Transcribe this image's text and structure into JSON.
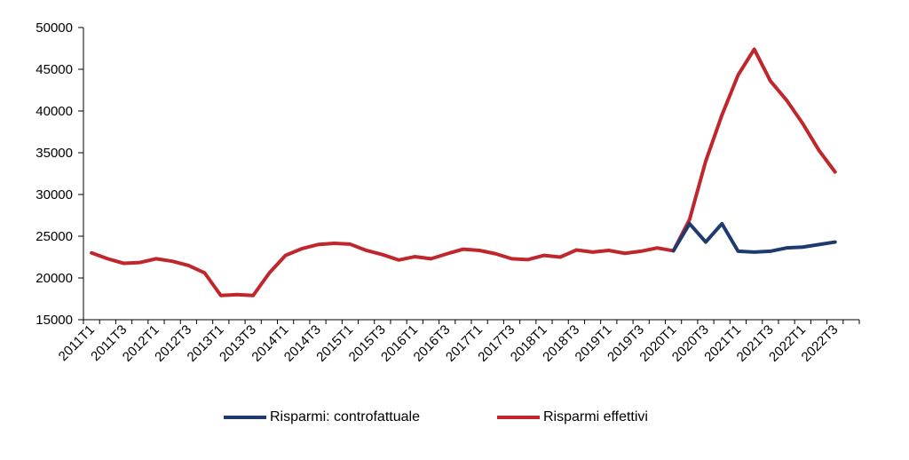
{
  "chart_data": {
    "type": "line",
    "title": "",
    "xlabel": "",
    "ylabel": "",
    "ylim": [
      15000,
      50000
    ],
    "y_ticks": [
      15000,
      20000,
      25000,
      30000,
      35000,
      40000,
      45000,
      50000
    ],
    "grid": false,
    "legend_position": "bottom",
    "x_tick_labels": [
      "2011T1",
      "2011T3",
      "2012T1",
      "2012T3",
      "2013T1",
      "2013T3",
      "2014T1",
      "2014T3",
      "2015T1",
      "2015T3",
      "2016T1",
      "2016T3",
      "2017T1",
      "2017T3",
      "2018T1",
      "2018T3",
      "2019T1",
      "2019T3",
      "2020T1",
      "2020T3",
      "2021T1",
      "2021T3",
      "2022T1",
      "2022T3"
    ],
    "categories": [
      "2011T1",
      "2011T2",
      "2011T3",
      "2011T4",
      "2012T1",
      "2012T2",
      "2012T3",
      "2012T4",
      "2013T1",
      "2013T2",
      "2013T3",
      "2013T4",
      "2014T1",
      "2014T2",
      "2014T3",
      "2014T4",
      "2015T1",
      "2015T2",
      "2015T3",
      "2015T4",
      "2016T1",
      "2016T2",
      "2016T3",
      "2016T4",
      "2017T1",
      "2017T2",
      "2017T3",
      "2017T4",
      "2018T1",
      "2018T2",
      "2018T3",
      "2018T4",
      "2019T1",
      "2019T2",
      "2019T3",
      "2019T4",
      "2020T1",
      "2020T2",
      "2020T3",
      "2020T4",
      "2021T1",
      "2021T2",
      "2021T3",
      "2021T4",
      "2022T1",
      "2022T2",
      "2022T3",
      "2022T4"
    ],
    "series": [
      {
        "name": "Risparmi effettivi",
        "color": "#c0272d",
        "values": [
          23000,
          22300,
          21750,
          21850,
          22300,
          22000,
          21500,
          20600,
          17900,
          18000,
          17900,
          20600,
          22700,
          23500,
          24000,
          24150,
          24050,
          23300,
          22800,
          22150,
          22550,
          22300,
          22900,
          23450,
          23300,
          22900,
          22300,
          22200,
          22700,
          22500,
          23350,
          23100,
          23300,
          22950,
          23200,
          23600,
          23250,
          27000,
          34000,
          39500,
          44300,
          47400,
          43600,
          41300,
          38500,
          35300,
          32700,
          null
        ]
      },
      {
        "name": "Risparmi: controfattuale",
        "color": "#1f3b6e",
        "values": [
          null,
          null,
          null,
          null,
          null,
          null,
          null,
          null,
          null,
          null,
          null,
          null,
          null,
          null,
          null,
          null,
          null,
          null,
          null,
          null,
          null,
          null,
          null,
          null,
          null,
          null,
          null,
          null,
          null,
          null,
          null,
          null,
          null,
          null,
          null,
          null,
          23250,
          26500,
          24300,
          26500,
          23200,
          23100,
          23200,
          23600,
          23700,
          24000,
          24300,
          null
        ]
      }
    ],
    "legend": [
      {
        "label": "Risparmi: controfattuale",
        "color": "#1f3b6e"
      },
      {
        "label": "Risparmi effettivi",
        "color": "#c0272d"
      }
    ]
  }
}
